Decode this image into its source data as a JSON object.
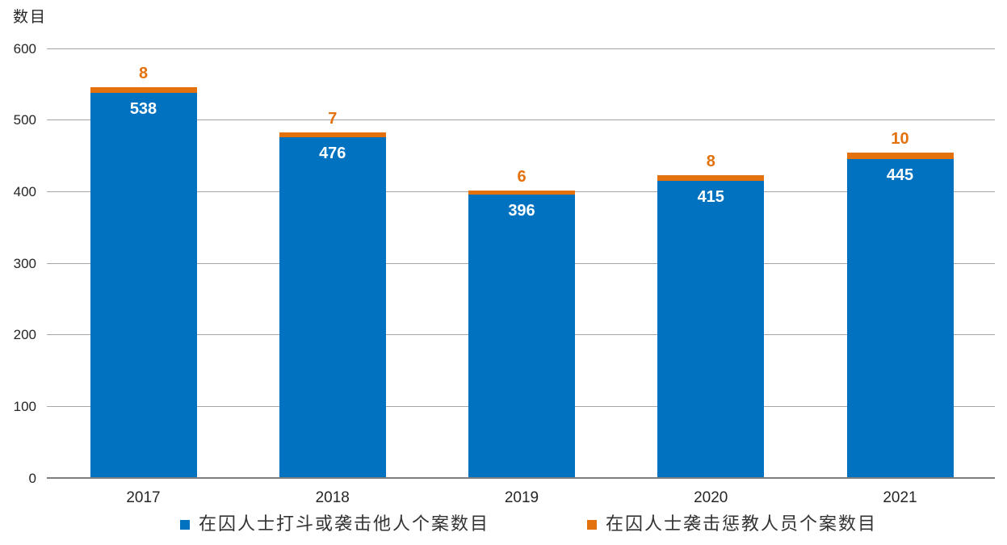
{
  "chart_data": {
    "type": "bar",
    "stacked": true,
    "title": "数目",
    "ylabel": "数目",
    "xlabel": "",
    "categories": [
      "2017",
      "2018",
      "2019",
      "2020",
      "2021"
    ],
    "series": [
      {
        "name": "在囚人士打斗或袭击他人个案数目",
        "color": "#0072c0",
        "label_color": "#ffffff",
        "values": [
          538,
          476,
          396,
          415,
          445
        ]
      },
      {
        "name": "在囚人士袭击惩教人员个案数目",
        "color": "#e3720e",
        "label_color": "#e3720e",
        "values": [
          8,
          7,
          6,
          8,
          10
        ]
      }
    ],
    "ylim": [
      0,
      600
    ],
    "yticks": [
      0,
      100,
      200,
      300,
      400,
      500,
      600
    ],
    "grid": true,
    "legend_position": "bottom"
  }
}
